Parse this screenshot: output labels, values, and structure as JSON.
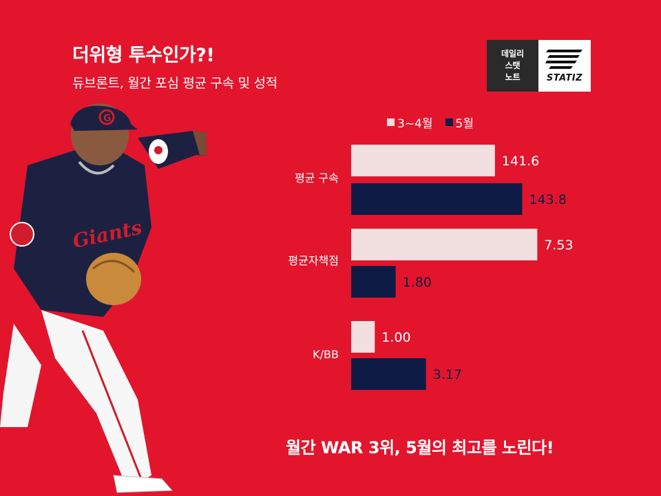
{
  "header": {
    "title": "더위형 투수인가?!",
    "subtitle": "듀브론트, 월간 포심 평균 구속 및 성적"
  },
  "badge": {
    "line1": "데일리",
    "line2": "스탯",
    "line3": "노트",
    "brand": "STATIZ"
  },
  "footer": {
    "text": "월간 WAR 3위, 5월의 최고를 노린다!"
  },
  "colors": {
    "background": "#E2152D",
    "series_1": "#F2DFDF",
    "series_2": "#0E1B45"
  },
  "player": {
    "cap_letter": "G",
    "jersey_text": "Giants"
  },
  "chart_data": {
    "type": "bar",
    "orientation": "horizontal",
    "categories": [
      "평균 구속",
      "평균자책점",
      "K/BB"
    ],
    "series": [
      {
        "name": "3~4월",
        "values": [
          "141.6",
          "7.53",
          "1.00"
        ]
      },
      {
        "name": "5월",
        "values": [
          "143.8",
          "1.80",
          "3.17"
        ]
      }
    ],
    "legend_position": "top",
    "grid": false
  }
}
